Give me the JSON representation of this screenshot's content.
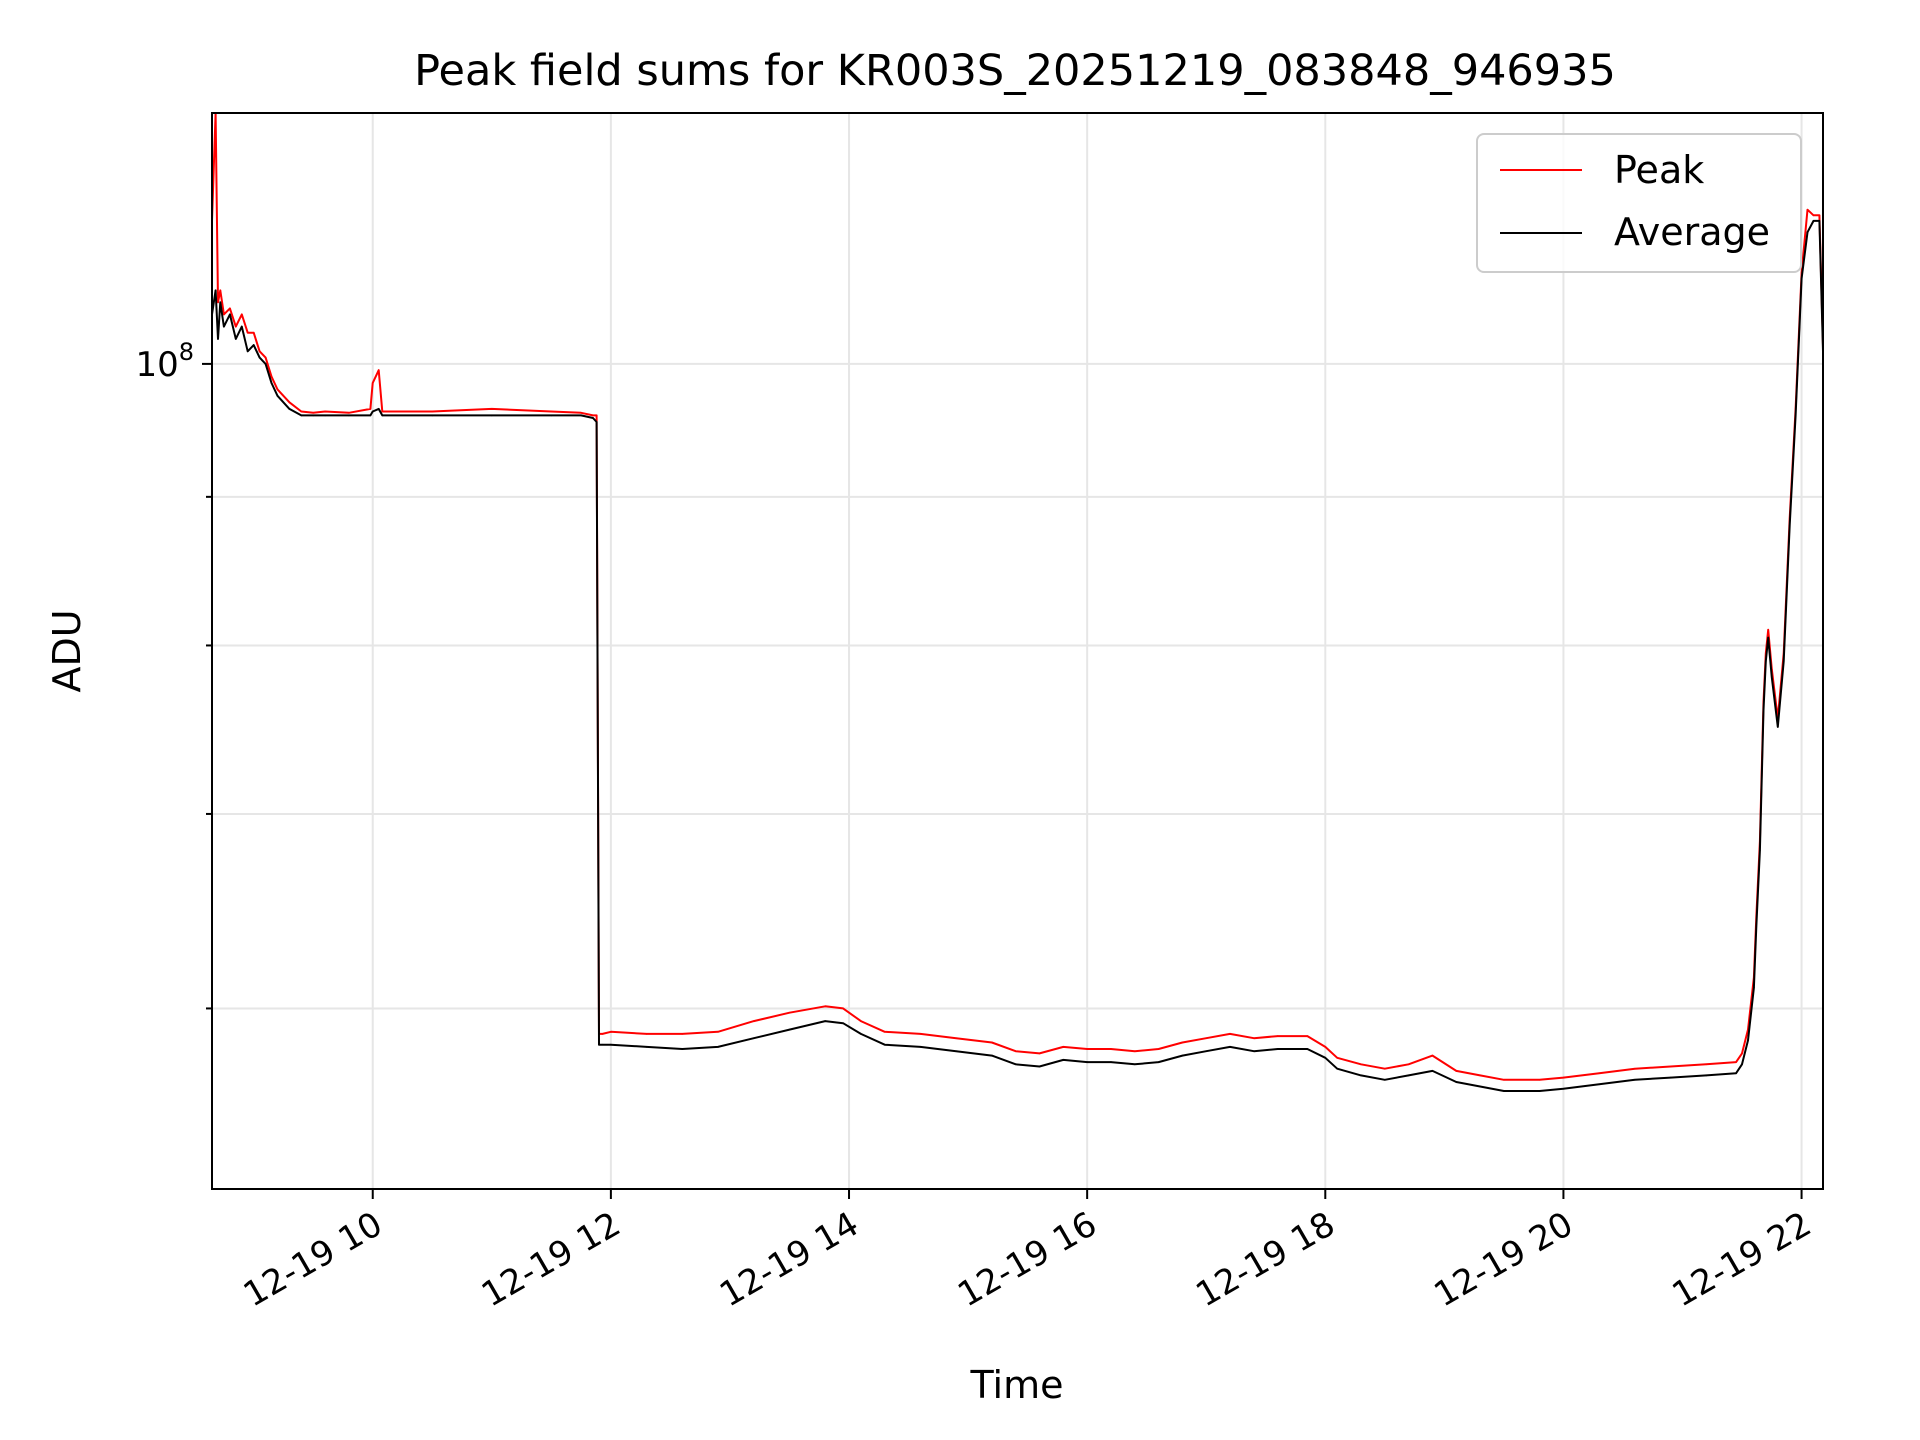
{
  "chart_data": {
    "type": "line",
    "title": "Peak field sums for KR003S_20251219_083848_946935",
    "xlabel": "Time",
    "ylabel": "ADU",
    "yscale": "log",
    "ylim": [
      52000000,
      122000000
    ],
    "xlim": [
      8.65,
      22.18
    ],
    "x_unit": "hours on 2025-12-19",
    "x_ticks": [
      {
        "value": 10,
        "label": "12-19 10"
      },
      {
        "value": 12,
        "label": "12-19 12"
      },
      {
        "value": 14,
        "label": "12-19 14"
      },
      {
        "value": 16,
        "label": "12-19 16"
      },
      {
        "value": 18,
        "label": "12-19 18"
      },
      {
        "value": 20,
        "label": "12-19 20"
      },
      {
        "value": 22,
        "label": "12-19 22"
      }
    ],
    "y_ticks": [
      {
        "value": 100000000,
        "base": "10",
        "exp": "8"
      }
    ],
    "y_minor_ticks": [
      60000000,
      70000000,
      80000000,
      90000000
    ],
    "grid": true,
    "legend": {
      "location": "upper right",
      "entries": [
        "Peak",
        "Average"
      ]
    },
    "series": [
      {
        "name": "Average",
        "color": "#000000",
        "x": [
          8.65,
          8.68,
          8.7,
          8.72,
          8.75,
          8.8,
          8.85,
          8.9,
          8.95,
          9.0,
          9.05,
          9.1,
          9.15,
          9.2,
          9.3,
          9.4,
          9.5,
          9.6,
          9.8,
          9.98,
          10.0,
          10.05,
          10.08,
          10.5,
          11.0,
          11.5,
          11.75,
          11.85,
          11.88,
          11.9,
          11.93,
          12.0,
          12.3,
          12.6,
          12.9,
          13.2,
          13.5,
          13.8,
          13.95,
          14.1,
          14.3,
          14.6,
          14.9,
          15.2,
          15.4,
          15.6,
          15.8,
          16.0,
          16.2,
          16.4,
          16.6,
          16.8,
          17.0,
          17.2,
          17.4,
          17.6,
          17.85,
          18.0,
          18.1,
          18.3,
          18.5,
          18.7,
          18.9,
          19.1,
          19.3,
          19.5,
          19.8,
          20.0,
          20.3,
          20.6,
          20.9,
          21.2,
          21.45,
          21.5,
          21.55,
          21.6,
          21.62,
          21.65,
          21.68,
          21.7,
          21.72,
          21.75,
          21.8,
          21.85,
          21.9,
          21.95,
          22.0,
          22.05,
          22.1,
          22.15,
          22.18
        ],
        "values": [
          104000000,
          106000000,
          102000000,
          105000000,
          103000000,
          104000000,
          102000000,
          103000000,
          101000000,
          101500000,
          100500000,
          100000000,
          98500000,
          97500000,
          96500000,
          96000000,
          96000000,
          96000000,
          96000000,
          96000000,
          96300000,
          96500000,
          96000000,
          96000000,
          96000000,
          96000000,
          96000000,
          95800000,
          95500000,
          58300000,
          58300000,
          58300000,
          58200000,
          58100000,
          58200000,
          58600000,
          59000000,
          59400000,
          59300000,
          58800000,
          58300000,
          58200000,
          58000000,
          57800000,
          57400000,
          57300000,
          57600000,
          57500000,
          57500000,
          57400000,
          57500000,
          57800000,
          58000000,
          58200000,
          58000000,
          58100000,
          58100000,
          57700000,
          57200000,
          56900000,
          56700000,
          56900000,
          57100000,
          56600000,
          56400000,
          56200000,
          56200000,
          56300000,
          56500000,
          56700000,
          56800000,
          56900000,
          57000000,
          57400000,
          58500000,
          61000000,
          64000000,
          68000000,
          76000000,
          79000000,
          80500000,
          78000000,
          75000000,
          79000000,
          88000000,
          96000000,
          107000000,
          111000000,
          112000000,
          112000000,
          101000000
        ]
      },
      {
        "name": "Peak",
        "color": "#ff0000",
        "x": [
          8.65,
          8.68,
          8.7,
          8.72,
          8.75,
          8.8,
          8.85,
          8.9,
          8.95,
          9.0,
          9.05,
          9.1,
          9.15,
          9.2,
          9.3,
          9.4,
          9.5,
          9.6,
          9.8,
          9.98,
          10.0,
          10.05,
          10.08,
          10.5,
          11.0,
          11.5,
          11.75,
          11.85,
          11.88,
          11.9,
          11.93,
          12.0,
          12.3,
          12.6,
          12.9,
          13.2,
          13.5,
          13.8,
          13.95,
          14.1,
          14.3,
          14.6,
          14.9,
          15.2,
          15.4,
          15.6,
          15.8,
          16.0,
          16.2,
          16.4,
          16.6,
          16.8,
          17.0,
          17.2,
          17.4,
          17.6,
          17.85,
          18.0,
          18.1,
          18.3,
          18.5,
          18.7,
          18.9,
          19.1,
          19.3,
          19.5,
          19.8,
          20.0,
          20.3,
          20.6,
          20.9,
          21.2,
          21.45,
          21.5,
          21.55,
          21.6,
          21.62,
          21.65,
          21.68,
          21.7,
          21.72,
          21.75,
          21.8,
          21.85,
          21.9,
          21.95,
          22.0,
          22.05,
          22.1,
          22.15,
          22.18
        ],
        "values": [
          112000000,
          122000000,
          105000000,
          106000000,
          104000000,
          104500000,
          103000000,
          104000000,
          102500000,
          102500000,
          101000000,
          100500000,
          99000000,
          98000000,
          97000000,
          96300000,
          96200000,
          96300000,
          96200000,
          96500000,
          98500000,
          99500000,
          96300000,
          96300000,
          96500000,
          96300000,
          96200000,
          96000000,
          96000000,
          58800000,
          58800000,
          58900000,
          58800000,
          58800000,
          58900000,
          59400000,
          59800000,
          60100000,
          60000000,
          59400000,
          58900000,
          58800000,
          58600000,
          58400000,
          58000000,
          57900000,
          58200000,
          58100000,
          58100000,
          58000000,
          58100000,
          58400000,
          58600000,
          58800000,
          58600000,
          58700000,
          58700000,
          58200000,
          57700000,
          57400000,
          57200000,
          57400000,
          57800000,
          57100000,
          56900000,
          56700000,
          56700000,
          56800000,
          57000000,
          57200000,
          57300000,
          57400000,
          57500000,
          57900000,
          59000000,
          61500000,
          64500000,
          68500000,
          76500000,
          79500000,
          81000000,
          78500000,
          75500000,
          79500000,
          88500000,
          96500000,
          107500000,
          113000000,
          112500000,
          112500000,
          101500000
        ]
      }
    ]
  }
}
